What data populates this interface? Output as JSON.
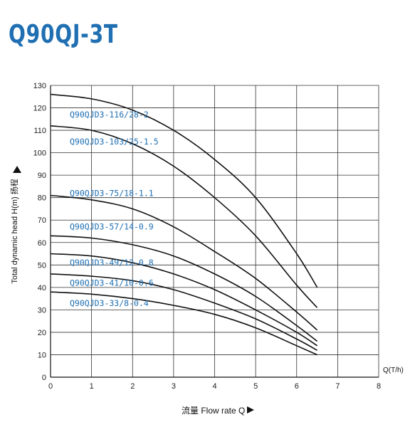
{
  "title": "Q90QJ-3T",
  "chart_data": {
    "type": "line",
    "title": "Q90QJ-3T",
    "xlabel": "流量 Flow rate Q",
    "x_unit": "Q(T/h)",
    "ylabel": "Total dynamic head H(m) 扬程",
    "xlim": [
      0,
      8
    ],
    "ylim": [
      0,
      130
    ],
    "x_ticks": [
      0,
      1,
      2,
      3,
      4,
      5,
      6,
      7,
      8
    ],
    "y_ticks": [
      0,
      10,
      20,
      30,
      40,
      50,
      60,
      70,
      80,
      90,
      100,
      110,
      120,
      130
    ],
    "grid": true,
    "series": [
      {
        "name": "Q90QJD3-116/28-2",
        "x": [
          0,
          1,
          2,
          3,
          4,
          5,
          6,
          6.5
        ],
        "y": [
          126,
          124,
          119,
          110,
          97,
          80,
          55,
          40
        ]
      },
      {
        "name": "Q90QJD3-103/25-1.5",
        "x": [
          0,
          1,
          2,
          3,
          4,
          5,
          6,
          6.5
        ],
        "y": [
          112,
          110,
          104,
          94,
          80,
          63,
          41,
          31
        ]
      },
      {
        "name": "Q90QJD3-75/18-1.1",
        "x": [
          0,
          1,
          2,
          3,
          4,
          5,
          6,
          6.5
        ],
        "y": [
          81,
          79,
          75,
          67,
          56,
          44,
          29,
          21
        ]
      },
      {
        "name": "Q90QJD3-57/14-0.9",
        "x": [
          0,
          1,
          2,
          3,
          4,
          5,
          6,
          6.5
        ],
        "y": [
          63,
          62,
          59,
          54,
          46,
          36,
          23,
          16
        ]
      },
      {
        "name": "Q90QJD3-49/12-0.8",
        "x": [
          0,
          1,
          2,
          3,
          4,
          5,
          6,
          6.5
        ],
        "y": [
          55,
          54,
          51,
          46,
          39,
          30,
          20,
          14
        ]
      },
      {
        "name": "Q90QJD3-41/10-0.6",
        "x": [
          0,
          1,
          2,
          3,
          4,
          5,
          6,
          6.5
        ],
        "y": [
          46,
          45,
          43,
          39,
          33,
          26,
          17,
          12
        ]
      },
      {
        "name": "Q90QJD3-33/8-0.4",
        "x": [
          0,
          1,
          2,
          3,
          4,
          5,
          6,
          6.5
        ],
        "y": [
          38,
          37,
          35,
          32,
          28,
          22,
          14,
          10
        ]
      }
    ],
    "labels_at_y": [
      {
        "name": "Q90QJD3-116/28-2",
        "y": 117
      },
      {
        "name": "Q90QJD3-103/25-1.5",
        "y": 105
      },
      {
        "name": "Q90QJD3-75/18-1.1",
        "y": 82
      },
      {
        "name": "Q90QJD3-57/14-0.9",
        "y": 67
      },
      {
        "name": "Q90QJD3-49/12-0.8",
        "y": 51
      },
      {
        "name": "Q90QJD3-41/10-0.6",
        "y": 42
      },
      {
        "name": "Q90QJD3-33/8-0.4",
        "y": 33
      }
    ]
  }
}
